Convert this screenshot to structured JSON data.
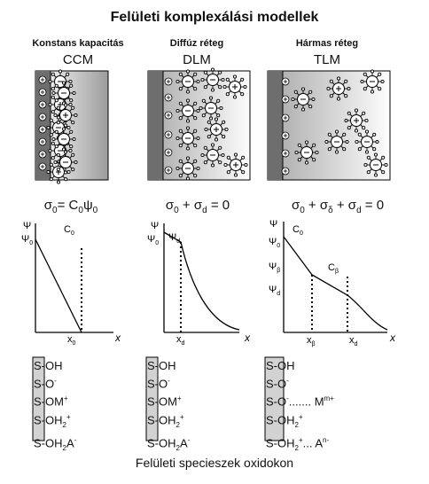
{
  "title": "Felületi komplexálási modellek",
  "models": [
    {
      "id": "ccm",
      "header": "Konstans kapacitás",
      "abbr": "CCM",
      "equation": {
        "parts": [
          "σ",
          "0",
          "= C",
          "0",
          "ψ",
          "0",
          "",
          ""
        ]
      },
      "graph": {
        "ylabel": "Ψ",
        "y0": "Ψ",
        "y0_sub": "0",
        "cap": "C",
        "cap_sub": "0",
        "xlabel": "x",
        "xtick": "x",
        "xtick_sub": "0"
      },
      "species": [
        "S-OH",
        "S-O-",
        "S-OM+",
        "S-OH2+",
        "S-OH2A-"
      ]
    },
    {
      "id": "dlm",
      "header": "Diffúz réteg",
      "abbr": "DLM",
      "equation": {
        "parts": [
          "σ",
          "0",
          " + σ",
          "d",
          " = 0"
        ]
      },
      "graph": {
        "ylabel": "Ψ",
        "y0": "Ψ",
        "y0_sub": "0",
        "yd": "Ψ",
        "yd_sub": "d",
        "xlabel": "x",
        "xtick": "x",
        "xtick_sub": "d"
      },
      "species": [
        "S-OH",
        "S-O-",
        "S-OM+",
        "S-OH2+",
        "S-OH2A-"
      ]
    },
    {
      "id": "tlm",
      "header": "Hármas réteg",
      "abbr": "TLM",
      "equation": {
        "parts": [
          "σ",
          "0",
          " + σ",
          "δ",
          " + σ",
          "d",
          " = 0"
        ]
      },
      "graph": {
        "ylabel": "Ψ",
        "y0": "Ψ",
        "y0_sub": "0",
        "yb": "Ψ",
        "yb_sub": "β",
        "yd": "Ψ",
        "yd_sub": "d",
        "cap0": "C",
        "cap0_sub": "0",
        "capb": "C",
        "capb_sub": "β",
        "xlabel": "x",
        "xtick_b": "x",
        "xtick_b_sub": "β",
        "xtick_d": "x",
        "xtick_d_sub": "d"
      },
      "species_text": {
        "s1": "S-OH",
        "s2": "S-O",
        "s2_sup": "-",
        "s3": "S-O",
        "s3_sup": "-",
        "s3_dots": "....... M",
        "s3_m_sup": "m+",
        "s4": "S-OH",
        "s4_sub": "2",
        "s4_sup": "+",
        "s5": "S-OH",
        "s5_sub": "2",
        "s5_sup": "+",
        "s5_dots": "... A",
        "s5_a_sup": "n-"
      }
    }
  ],
  "species_text": {
    "oh": "S-OH",
    "o": "S-O",
    "minus": "-",
    "om": "S-OM",
    "plus": "+",
    "oh2": "S-OH",
    "two": "2",
    "oh2a": "S-OH",
    "a": "A"
  },
  "footer": "Felületi specieszek oxidokon",
  "colors": {
    "surface": "#6e6e6e",
    "solution_dark": "#bdbdbd",
    "solution_light": "#fbfbfb",
    "ion_fill": "#ffffff",
    "line": "#000000"
  }
}
